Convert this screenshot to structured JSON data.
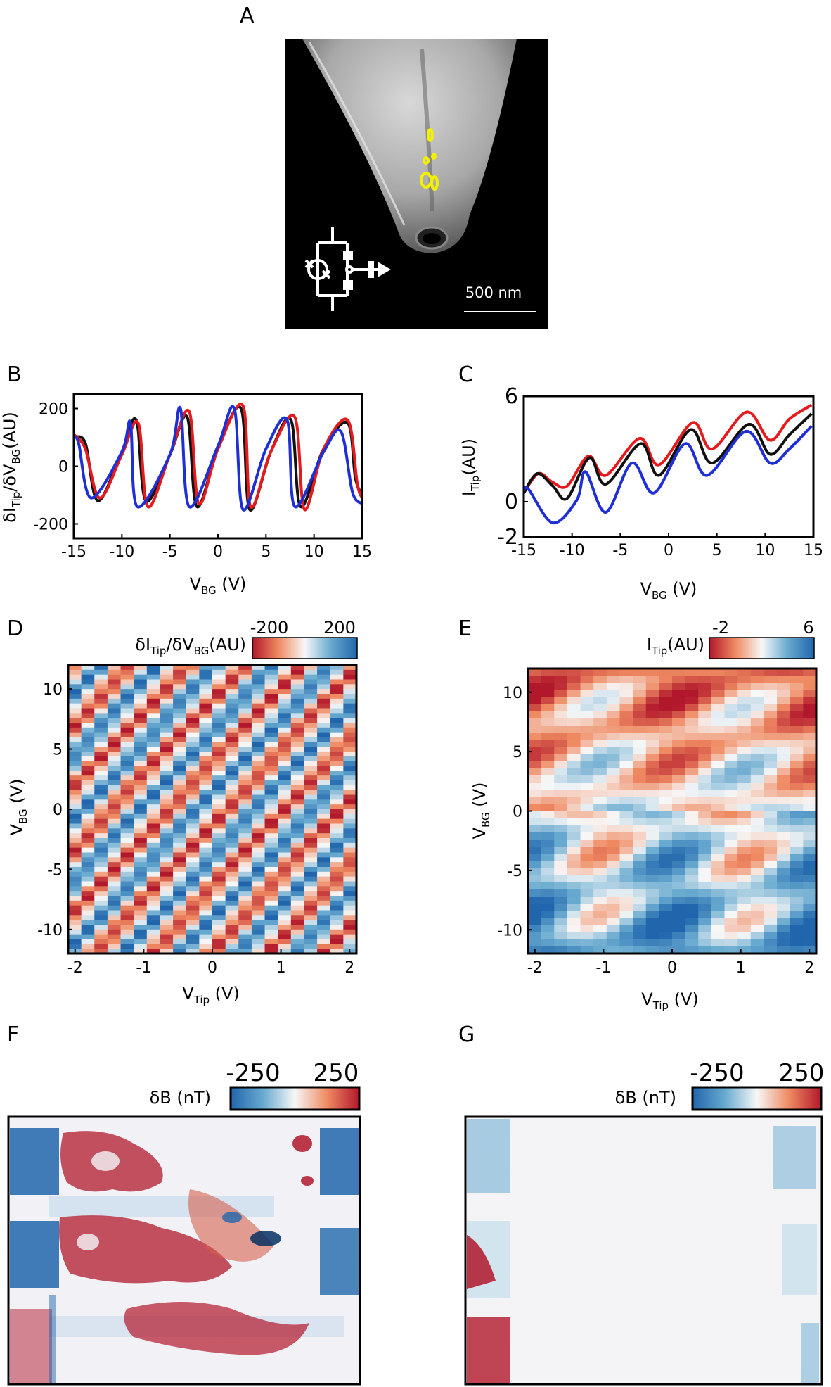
{
  "panels": {
    "A": {
      "label": "A",
      "scalebar": "500 nm"
    },
    "B": {
      "label": "B",
      "ylabel_main": "δI",
      "ylabel_sub1": "Tip",
      "ylabel_mid": "/δV",
      "ylabel_sub2": "BG",
      "ylabel_unit": "(AU)",
      "xlabel_main": "V",
      "xlabel_sub": "BG",
      "xlabel_unit": " (V)"
    },
    "C": {
      "label": "C",
      "ylabel_main": "I",
      "ylabel_sub": "Tip",
      "ylabel_unit": "(AU)",
      "xlabel_main": "V",
      "xlabel_sub": "BG",
      "xlabel_unit": " (V)"
    },
    "D": {
      "label": "D",
      "cb_main": "δI",
      "cb_sub1": "Tip",
      "cb_mid": "/δV",
      "cb_sub2": "BG",
      "cb_unit": "(AU)",
      "cb_min": "-200",
      "cb_max": "200",
      "xlabel_main": "V",
      "xlabel_sub": "Tip",
      "xlabel_unit": " (V)",
      "ylabel_main": "V",
      "ylabel_sub": "BG",
      "ylabel_unit": " (V)"
    },
    "E": {
      "label": "E",
      "cb_main": "I",
      "cb_sub": "Tip",
      "cb_unit": "(AU)",
      "cb_min": "-2",
      "cb_max": "6",
      "xlabel_main": "V",
      "xlabel_sub": "Tip",
      "xlabel_unit": " (V)",
      "ylabel_main": "V",
      "ylabel_sub": "BG",
      "ylabel_unit": " (V)"
    },
    "F": {
      "label": "F",
      "cb_label": "δB (nT)",
      "cb_min": "-250",
      "cb_max": "250"
    },
    "G": {
      "label": "G",
      "cb_label": "δB (nT)",
      "cb_min": "-250",
      "cb_max": "250"
    }
  },
  "colors": {
    "black": "#111111",
    "red": "#e41a1c",
    "blue": "#1f2fd6",
    "map_red": "#b2182b",
    "map_blue": "#2166ac"
  },
  "chart_data": [
    {
      "panel": "B",
      "type": "line",
      "xlim": [
        -15,
        15
      ],
      "ylim": [
        -250,
        250
      ],
      "xticks": [
        "-15",
        "-10",
        "-5",
        "0",
        "5",
        "10",
        "15"
      ],
      "yticks": [
        "-200",
        "0",
        "200"
      ],
      "series": [
        {
          "color": "black",
          "x": [
            -15,
            -13.8,
            -12.5,
            -10,
            -8.5,
            -7.5,
            -5,
            -3.2,
            -2.2,
            0,
            2.4,
            3.3,
            5.5,
            7.6,
            8.6,
            11,
            13.5,
            14.3,
            15
          ],
          "y": [
            100,
            80,
            -120,
            50,
            160,
            -120,
            40,
            170,
            -140,
            60,
            200,
            -150,
            50,
            160,
            -140,
            60,
            150,
            -40,
            -100
          ]
        },
        {
          "color": "red",
          "x": [
            -15,
            -13.8,
            -12.3,
            -10,
            -8.3,
            -7.3,
            -5,
            -3,
            -2,
            0,
            2.6,
            3.4,
            5.5,
            8,
            9,
            11,
            13.5,
            14.5,
            15
          ],
          "y": [
            110,
            60,
            -110,
            40,
            150,
            -140,
            40,
            190,
            -130,
            60,
            210,
            -140,
            50,
            170,
            -150,
            60,
            160,
            -60,
            -110
          ]
        },
        {
          "color": "blue",
          "x": [
            -15,
            -14.5,
            -13.2,
            -10,
            -9.1,
            -8.4,
            -5,
            -3.9,
            -3.0,
            0,
            1.7,
            2.6,
            5,
            7.2,
            8.0,
            11,
            12.8,
            14,
            15
          ],
          "y": [
            100,
            80,
            -110,
            50,
            150,
            -140,
            40,
            200,
            -140,
            70,
            200,
            -150,
            60,
            160,
            -140,
            50,
            120,
            -90,
            -130
          ]
        }
      ]
    },
    {
      "panel": "C",
      "type": "line",
      "xlim": [
        -15,
        15
      ],
      "ylim": [
        -2,
        6
      ],
      "xticks": [
        "-15",
        "-10",
        "-5",
        "0",
        "5",
        "10",
        "15"
      ],
      "yticks": [
        "-2",
        "0",
        "6"
      ],
      "series": [
        {
          "color": "red",
          "x": [
            -15,
            -13.5,
            -12,
            -10.5,
            -8.3,
            -6.5,
            -3,
            -1,
            2.5,
            4.5,
            8.1,
            10.5,
            12.5,
            14.8
          ],
          "y": [
            0.5,
            1.6,
            1.1,
            0.9,
            2.6,
            1.5,
            3.6,
            2.1,
            4.5,
            3.0,
            5.1,
            3.5,
            4.7,
            5.5
          ]
        },
        {
          "color": "black",
          "x": [
            -15,
            -13.6,
            -12,
            -10.5,
            -8.2,
            -6.5,
            -2.9,
            -1,
            2.3,
            4.5,
            8.3,
            10.5,
            12.5,
            14.8
          ],
          "y": [
            0.5,
            1.6,
            0.9,
            0.2,
            2.5,
            1.0,
            3.3,
            1.5,
            4.1,
            2.2,
            4.4,
            2.7,
            3.8,
            5.0
          ]
        },
        {
          "color": "blue",
          "x": [
            -15,
            -14.5,
            -12,
            -9.5,
            -8.6,
            -6.5,
            -3.8,
            -1.5,
            1.7,
            4,
            8.0,
            10.5,
            12.5,
            14.8
          ],
          "y": [
            0.6,
            0.7,
            -1.2,
            0.1,
            1.7,
            -0.6,
            2.2,
            0.5,
            3.3,
            1.5,
            4.0,
            2.2,
            3.0,
            4.3
          ]
        }
      ]
    },
    {
      "panel": "D",
      "type": "heatmap",
      "xlim": [
        -2.1,
        2.1
      ],
      "ylim": [
        -12,
        12
      ],
      "xticks": [
        "-2",
        "-1",
        "0",
        "1",
        "2"
      ],
      "yticks": [
        "-10",
        "-5",
        "0",
        "5",
        "10"
      ],
      "colorbar": [
        -200,
        200
      ]
    },
    {
      "panel": "E",
      "type": "heatmap",
      "xlim": [
        -2.1,
        2.1
      ],
      "ylim": [
        -12,
        12
      ],
      "xticks": [
        "-2",
        "-1",
        "0",
        "1",
        "2"
      ],
      "yticks": [
        "-10",
        "-5",
        "0",
        "5",
        "10"
      ],
      "colorbar": [
        -2,
        6
      ]
    }
  ]
}
